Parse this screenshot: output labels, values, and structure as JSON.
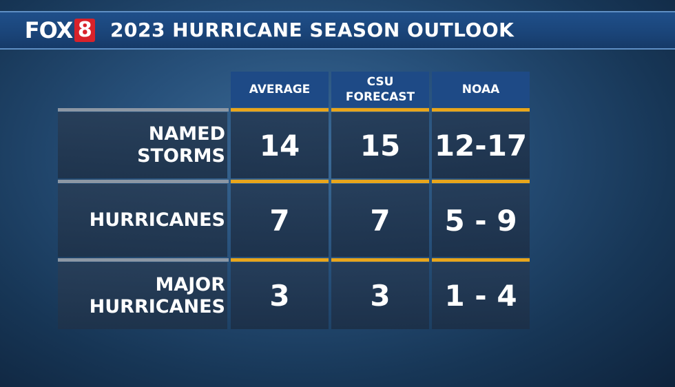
{
  "header": {
    "logo_text": "FOX",
    "logo_number": "8",
    "title": "2023 HURRICANE SEASON OUTLOOK"
  },
  "columns": [
    "AVERAGE",
    "CSU\nFORECAST",
    "NOAA"
  ],
  "rows": [
    {
      "label": "NAMED\nSTORMS",
      "values": [
        "14",
        "15",
        "12-17"
      ]
    },
    {
      "label": "HURRICANES",
      "values": [
        "7",
        "7",
        "5 - 9"
      ]
    },
    {
      "label": "MAJOR\nHURRICANES",
      "values": [
        "3",
        "3",
        "1 - 4"
      ]
    }
  ],
  "colors": {
    "accent_gold": "#e8a51c",
    "header_blue": "#1e4a86",
    "logo_red": "#d8222a"
  }
}
